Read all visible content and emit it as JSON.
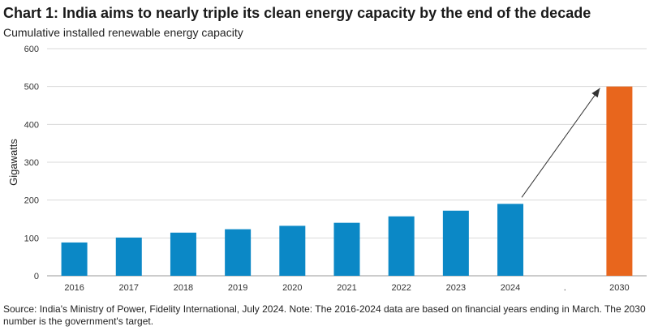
{
  "chart_data": {
    "type": "bar",
    "title": "Chart 1: India aims to nearly triple its clean energy capacity by the end of the decade",
    "subtitle": "Cumulative installed renewable energy capacity",
    "xlabel": "",
    "ylabel": "Gigawatts",
    "ylim": [
      0,
      600
    ],
    "yticks": [
      0,
      100,
      200,
      300,
      400,
      500,
      600
    ],
    "grid": true,
    "categories": [
      "2016",
      "2017",
      "2018",
      "2019",
      "2020",
      "2021",
      "2022",
      "2023",
      "2024",
      ".",
      "2030"
    ],
    "values": [
      88,
      101,
      114,
      123,
      132,
      140,
      157,
      172,
      190,
      null,
      500
    ],
    "bar_colors": [
      "#0b88c6",
      "#0b88c6",
      "#0b88c6",
      "#0b88c6",
      "#0b88c6",
      "#0b88c6",
      "#0b88c6",
      "#0b88c6",
      "#0b88c6",
      "#0b88c6",
      "#e8661d"
    ],
    "annotation": "arrow from 2024 bar to 2030 bar"
  },
  "source": "Source: India's Ministry of Power, Fidelity International, July 2024. Note: The 2016-2024 data are based on financial years ending in March. The 2030 number is the government's target."
}
